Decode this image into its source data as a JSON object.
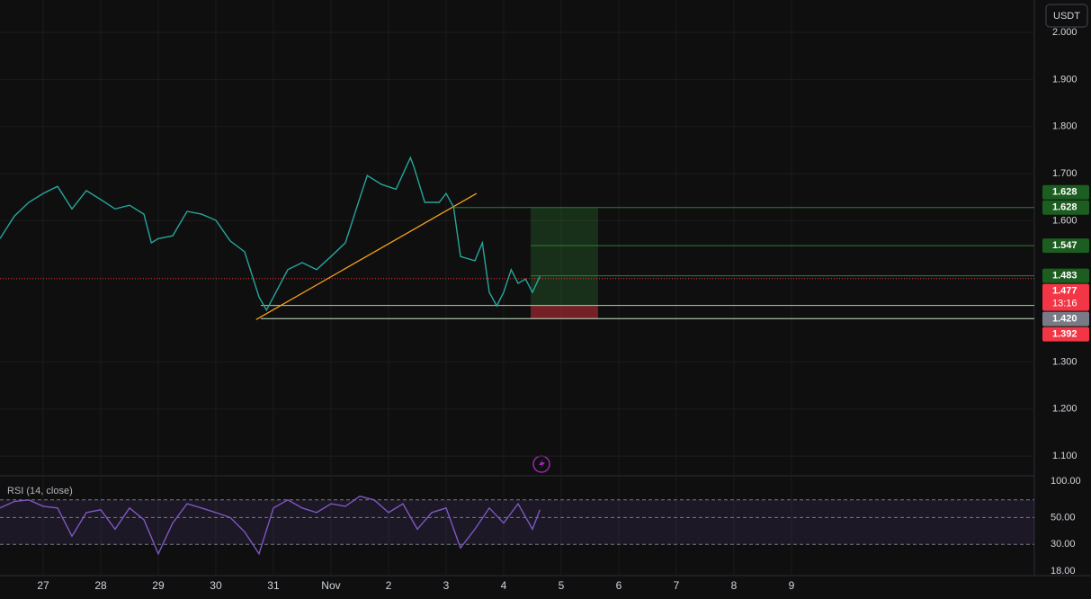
{
  "chart_data": {
    "type": "line",
    "currency": "USDT",
    "xlim": [
      -0.75,
      17.22
    ],
    "xticks": [
      {
        "value": 0,
        "label": "27"
      },
      {
        "value": 1,
        "label": "28"
      },
      {
        "value": 2,
        "label": "29"
      },
      {
        "value": 3,
        "label": "30"
      },
      {
        "value": 4,
        "label": "31"
      },
      {
        "value": 5,
        "label": "Nov"
      },
      {
        "value": 6,
        "label": "2"
      },
      {
        "value": 7,
        "label": "3"
      },
      {
        "value": 8,
        "label": "4"
      },
      {
        "value": 9,
        "label": "5"
      },
      {
        "value": 10,
        "label": "6"
      },
      {
        "value": 11,
        "label": "7"
      },
      {
        "value": 12,
        "label": "8"
      },
      {
        "value": 13,
        "label": "9"
      }
    ],
    "ylim": [
      1.06,
      2.069
    ],
    "yticks": [
      {
        "value": 2.0,
        "label": "2.000"
      },
      {
        "value": 1.9,
        "label": "1.900"
      },
      {
        "value": 1.8,
        "label": "1.800"
      },
      {
        "value": 1.7,
        "label": "1.700"
      },
      {
        "value": 1.6,
        "label": "1.600"
      },
      {
        "value": 1.3,
        "label": "1.300"
      },
      {
        "value": 1.2,
        "label": "1.200"
      },
      {
        "value": 1.1,
        "label": "1.100"
      }
    ],
    "grid": true,
    "series": [
      {
        "name": "Price",
        "color": "#26a69a",
        "x": [
          -0.75,
          -0.5,
          -0.25,
          0,
          0.25,
          0.5,
          0.75,
          1,
          1.25,
          1.5,
          1.75,
          1.88,
          2,
          2.25,
          2.5,
          2.75,
          3,
          3.25,
          3.5,
          3.75,
          3.88,
          4,
          4.25,
          4.5,
          4.75,
          5,
          5.25,
          5.5,
          5.63,
          5.88,
          6.13,
          6.38,
          6.44,
          6.63,
          6.88,
          7,
          7.13,
          7.25,
          7.5,
          7.63,
          7.75,
          7.88,
          8,
          8.13,
          8.25,
          8.38,
          8.5,
          8.63
        ],
        "values": [
          1.562,
          1.61,
          1.639,
          1.658,
          1.673,
          1.625,
          1.664,
          1.645,
          1.625,
          1.633,
          1.614,
          1.553,
          1.562,
          1.568,
          1.62,
          1.614,
          1.601,
          1.557,
          1.534,
          1.438,
          1.41,
          1.438,
          1.496,
          1.511,
          1.496,
          1.524,
          1.553,
          1.648,
          1.696,
          1.677,
          1.667,
          1.734,
          1.715,
          1.639,
          1.639,
          1.658,
          1.629,
          1.524,
          1.515,
          1.553,
          1.448,
          1.419,
          1.448,
          1.496,
          1.467,
          1.476,
          1.448,
          1.482
        ]
      }
    ],
    "current_price": 1.477,
    "trendline": {
      "x": [
        3.7,
        7.53
      ],
      "values": [
        1.39,
        1.658
      ],
      "color": "#f7a21b"
    },
    "levels": [
      {
        "value": 1.628,
        "from": 7.14,
        "color": "#2e7d32"
      },
      {
        "value": 1.547,
        "from": 8.47,
        "color": "#2e7d32"
      },
      {
        "value": 1.483,
        "from": 8.47,
        "color": "#2e7d32"
      },
      {
        "value": 1.42,
        "from": 3.78,
        "color": "#a5d6a7"
      },
      {
        "value": 1.392,
        "from": 3.78,
        "color": "#c8e6c9"
      }
    ],
    "position": {
      "entry": 1.42,
      "target": 1.628,
      "stop": 1.392,
      "start": 8.47,
      "end": 9.64
    },
    "price_badges": [
      {
        "label": "1.628",
        "value": 1.628,
        "color": "#1b5e20"
      },
      {
        "label": "1.628",
        "value": 1.628,
        "color": "#1b5e20"
      },
      {
        "label": "1.547",
        "value": 1.547,
        "color": "#1b5e20"
      },
      {
        "label": "1.483",
        "value": 1.483,
        "color": "#1b5e20"
      },
      {
        "label": "1.477",
        "value": 1.477,
        "color": "#f23645",
        "countdown": "13:16"
      },
      {
        "label": "1.420",
        "value": 1.42,
        "color": "#787b86"
      },
      {
        "label": "1.392",
        "value": 1.392,
        "color": "#f23645"
      }
    ],
    "rsi": {
      "title": "RSI (14, close)",
      "log": true,
      "ylim": [
        18,
        100
      ],
      "yticks": [
        {
          "value": 100,
          "label": "100.00"
        },
        {
          "value": 50,
          "label": "50.00"
        },
        {
          "value": 30,
          "label": "30.00"
        },
        {
          "value": 18,
          "label": "18.00"
        }
      ],
      "bands": [
        70,
        50,
        30
      ],
      "series": [
        {
          "name": "RSI",
          "color": "#7e57c2",
          "x": [
            -0.75,
            -0.5,
            -0.25,
            0,
            0.25,
            0.5,
            0.75,
            1,
            1.25,
            1.5,
            1.75,
            2,
            2.25,
            2.5,
            2.75,
            3,
            3.25,
            3.5,
            3.75,
            4,
            4.25,
            4.5,
            4.75,
            5,
            5.25,
            5.5,
            5.75,
            6,
            6.25,
            6.5,
            6.75,
            7,
            7.25,
            7.5,
            7.75,
            8,
            8.25,
            8.5,
            8.63
          ],
          "values": [
            60,
            68,
            70,
            62,
            60,
            35,
            55,
            58,
            40,
            60,
            48,
            25,
            45,
            65,
            60,
            55,
            50,
            38,
            25,
            60,
            70,
            60,
            55,
            65,
            62,
            75,
            70,
            55,
            65,
            40,
            55,
            60,
            28,
            40,
            60,
            45,
            65,
            40,
            58
          ]
        }
      ]
    }
  }
}
